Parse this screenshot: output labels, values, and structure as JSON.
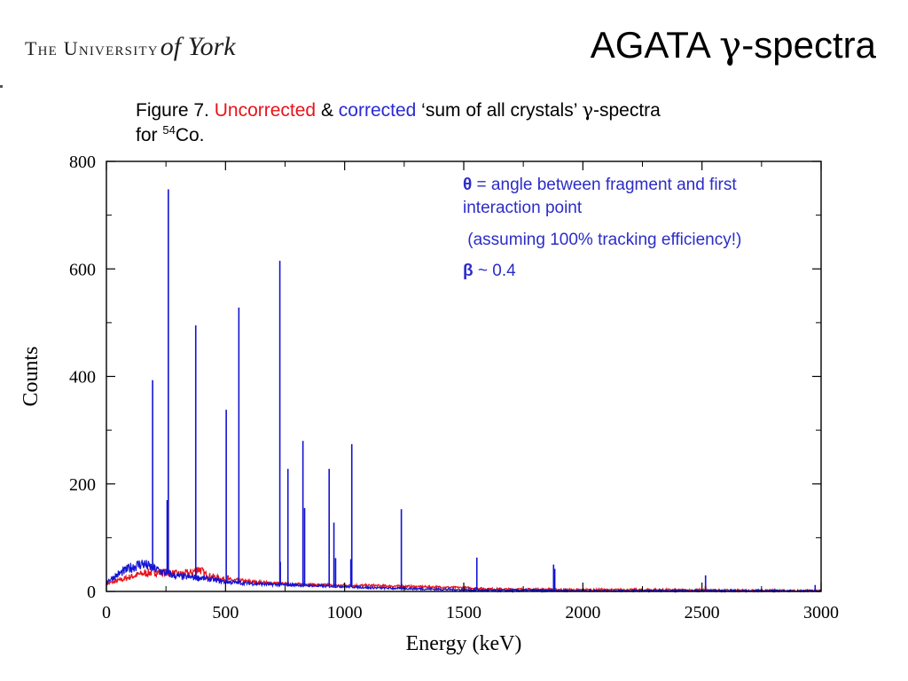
{
  "header": {
    "logo_text": "The University",
    "logo_italic": "of York",
    "title_prefix": "AGATA ",
    "title_greek": "γ",
    "title_suffix": "-spectra"
  },
  "caption": {
    "prefix": "Figure 7. ",
    "uncorrected": "Uncorrected",
    "amp": " & ",
    "corrected": "corrected",
    "mid": " ‘sum of all crystals’ ",
    "greek": "γ",
    "suffix": "-spectra",
    "line2_prefix": "for ",
    "isotope_mass": "54",
    "isotope_symbol": "Co."
  },
  "notes": {
    "theta_symbol": "θ",
    "theta_text": " = angle between fragment and first interaction point",
    "assumption": " (assuming 100% tracking efficiency!)",
    "beta_symbol": "β",
    "beta_text": " ~ 0.4"
  },
  "colors": {
    "uncorrected": "#e8141b",
    "corrected": "#1414d2",
    "note_text": "#2c2cc8"
  },
  "chart_data": {
    "type": "line",
    "title": "",
    "xlabel": "Energy (keV)",
    "ylabel": "Counts",
    "xlim": [
      0,
      3000
    ],
    "ylim": [
      0,
      800
    ],
    "x_ticks": [
      0,
      500,
      1000,
      1500,
      2000,
      2500,
      3000
    ],
    "x_tick_labels": [
      "0",
      "500",
      "1000",
      "1500",
      "2000",
      "2500",
      "3000"
    ],
    "y_ticks": [
      0,
      200,
      400,
      600,
      800
    ],
    "y_tick_labels": [
      "0",
      "200",
      "400",
      "600",
      "800"
    ],
    "grid": false,
    "series": [
      {
        "name": "Uncorrected",
        "color": "#e8141b",
        "continuum": [
          [
            0,
            14
          ],
          [
            50,
            20
          ],
          [
            100,
            27
          ],
          [
            150,
            33
          ],
          [
            200,
            36
          ],
          [
            250,
            35
          ],
          [
            300,
            32
          ],
          [
            350,
            34
          ],
          [
            390,
            42
          ],
          [
            420,
            30
          ],
          [
            500,
            22
          ],
          [
            600,
            18
          ],
          [
            700,
            15
          ],
          [
            800,
            13
          ],
          [
            900,
            12
          ],
          [
            1000,
            11
          ],
          [
            1100,
            11
          ],
          [
            1200,
            10
          ],
          [
            1300,
            9
          ],
          [
            1400,
            8
          ],
          [
            1500,
            7
          ],
          [
            1600,
            5
          ],
          [
            1700,
            4
          ],
          [
            1800,
            4
          ],
          [
            2000,
            3
          ],
          [
            2300,
            3
          ],
          [
            2600,
            2
          ],
          [
            3000,
            1
          ]
        ],
        "peaks": [
          [
            380,
            45
          ],
          [
            510,
            30
          ],
          [
            1880,
            12
          ],
          [
            2515,
            10
          ]
        ]
      },
      {
        "name": "Corrected",
        "color": "#1414d2",
        "continuum": [
          [
            0,
            18
          ],
          [
            50,
            32
          ],
          [
            100,
            44
          ],
          [
            150,
            52
          ],
          [
            180,
            46
          ],
          [
            250,
            34
          ],
          [
            300,
            28
          ],
          [
            400,
            25
          ],
          [
            500,
            18
          ],
          [
            600,
            15
          ],
          [
            700,
            13
          ],
          [
            800,
            12
          ],
          [
            900,
            10
          ],
          [
            1000,
            9
          ],
          [
            1100,
            7
          ],
          [
            1200,
            6
          ],
          [
            1300,
            5
          ],
          [
            1400,
            4
          ],
          [
            1500,
            3
          ],
          [
            1600,
            2
          ],
          [
            1800,
            2
          ],
          [
            2000,
            1
          ],
          [
            2400,
            1
          ],
          [
            3000,
            1
          ]
        ],
        "peaks": [
          [
            194,
            393
          ],
          [
            255,
            170
          ],
          [
            260,
            748
          ],
          [
            375,
            495
          ],
          [
            503,
            338
          ],
          [
            556,
            528
          ],
          [
            728,
            615
          ],
          [
            730,
            55
          ],
          [
            762,
            228
          ],
          [
            825,
            280
          ],
          [
            832,
            155
          ],
          [
            935,
            228
          ],
          [
            955,
            128
          ],
          [
            962,
            62
          ],
          [
            1026,
            60
          ],
          [
            1030,
            274
          ],
          [
            1238,
            153
          ],
          [
            1555,
            63
          ],
          [
            1877,
            50
          ],
          [
            1882,
            42
          ],
          [
            2515,
            30
          ],
          [
            2975,
            12
          ]
        ]
      }
    ]
  }
}
